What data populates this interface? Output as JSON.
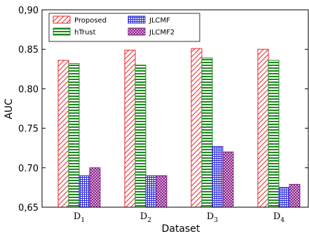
{
  "chart_data": {
    "type": "bar",
    "categories": [
      "D",
      "D",
      "D",
      "D"
    ],
    "category_subscripts": [
      "1",
      "2",
      "3",
      "4"
    ],
    "series": [
      {
        "name": "Proposed",
        "values": [
          0.836,
          0.849,
          0.851,
          0.85
        ],
        "color": "#e8232a",
        "pattern": "diagonal-hatch"
      },
      {
        "name": "hTrust",
        "values": [
          0.832,
          0.83,
          0.839,
          0.836
        ],
        "color": "#1b8a1b",
        "pattern": "horizontal-lines"
      },
      {
        "name": "JLCMF",
        "values": [
          0.69,
          0.69,
          0.727,
          0.675
        ],
        "color": "#2b2bd9",
        "pattern": "grid"
      },
      {
        "name": "JLCMF2",
        "values": [
          0.7,
          0.69,
          0.72,
          0.679
        ],
        "color": "#8a1f8a",
        "pattern": "crosshatch"
      }
    ],
    "xlabel": "Dataset",
    "ylabel": "AUC",
    "ylim": [
      0.65,
      0.9
    ],
    "yticks": [
      "0,65",
      "0.70",
      "0.75",
      "0.80",
      "0.85",
      "0,90"
    ],
    "grid": false,
    "legend_position": "top-left"
  }
}
